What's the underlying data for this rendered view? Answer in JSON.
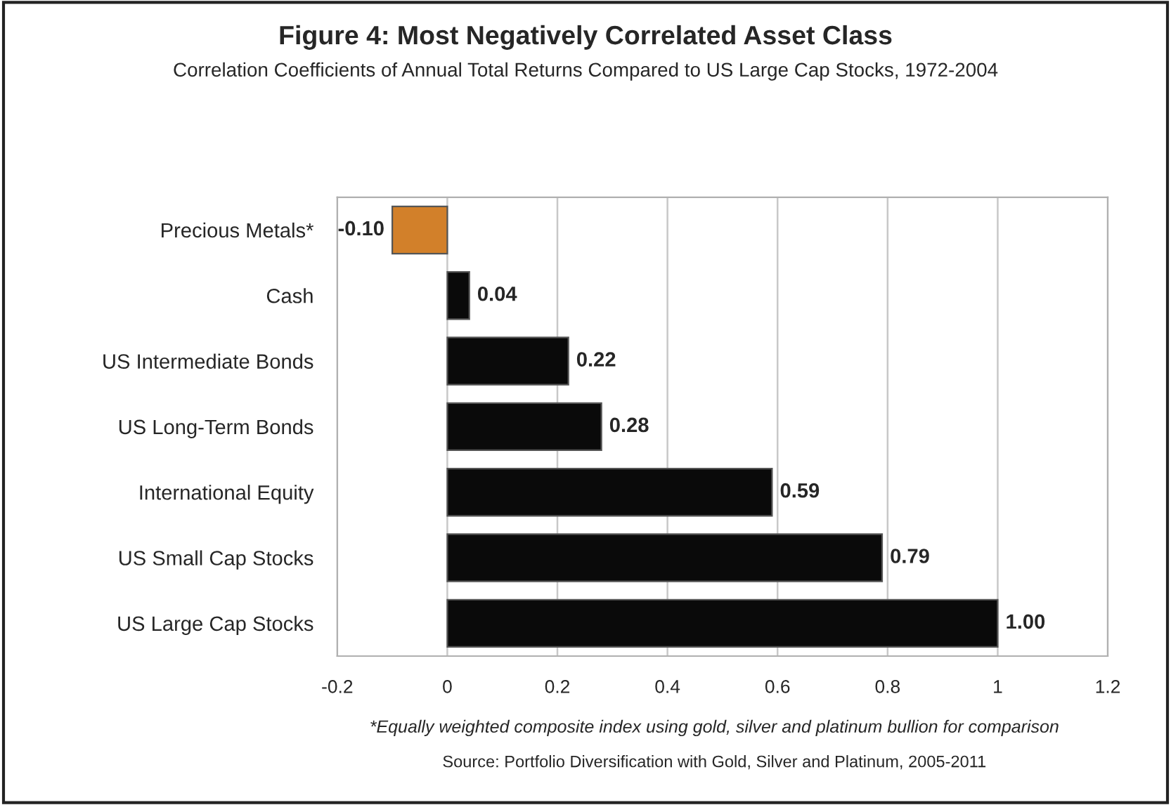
{
  "chart_data": {
    "type": "bar",
    "orientation": "horizontal",
    "title": "Figure 4: Most Negatively Correlated Asset Class",
    "subtitle": "Correlation Coefficients of Annual Total Returns Compared to US Large Cap Stocks, 1972-2004",
    "categories": [
      "Precious Metals*",
      "Cash",
      "US Intermediate Bonds",
      "US Long-Term Bonds",
      "International Equity",
      "US Small Cap Stocks",
      "US Large Cap Stocks"
    ],
    "values": [
      -0.1,
      0.04,
      0.22,
      0.28,
      0.59,
      0.79,
      1.0
    ],
    "colors": [
      "#d2802a",
      "#0a0a0a",
      "#0a0a0a",
      "#0a0a0a",
      "#0a0a0a",
      "#0a0a0a",
      "#0a0a0a"
    ],
    "value_labels": [
      "-0.10",
      "0.04",
      "0.22",
      "0.28",
      "0.59",
      "0.79",
      "1.00"
    ],
    "xlim": [
      -0.2,
      1.2
    ],
    "xticks": [
      -0.2,
      0,
      0.2,
      0.4,
      0.6,
      0.8,
      1,
      1.2
    ],
    "grid": "x",
    "annotations": [
      "*Equally weighted composite index using gold, silver and platinum bullion for comparison",
      "Source: Portfolio Diversification with Gold, Silver and Platinum, 2005-2011"
    ]
  }
}
